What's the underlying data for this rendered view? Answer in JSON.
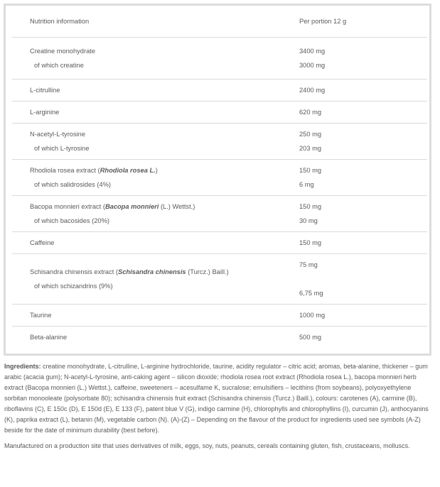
{
  "table": {
    "header": {
      "name": "Nutrition information",
      "value": "Per portion 12 g"
    },
    "rows": [
      {
        "name": "Creatine monohydrate",
        "value": "3400 mg",
        "sub": "of which creatine",
        "sub_value": "3000 mg"
      },
      {
        "name": "L-citrulline",
        "value": "2400 mg"
      },
      {
        "name": "L-arginine",
        "value": "620 mg"
      },
      {
        "name": "N-acetyl-L-tyrosine",
        "value": "250 mg",
        "sub": "of which L-tyrosine",
        "sub_value": "203 mg"
      },
      {
        "name": "Rhodiola rosea extract (",
        "latin": "Rhodiola rosea L.",
        "post": ")",
        "value": "150 mg",
        "sub": "of which salidrosides (4%)",
        "sub_value": "6 mg"
      },
      {
        "name": "Bacopa monnieri extract (",
        "latin": "Bacopa monnieri",
        "post": " (L.) Wettst.)",
        "value": "150 mg",
        "sub": "of which bacosides (20%)",
        "sub_value": "30 mg"
      },
      {
        "name": "Caffeine",
        "value": "150 mg"
      },
      {
        "name": "Schisandra chinensis extract (",
        "latin": "Schisandra chinensis",
        "post": " (Turcz.) Baill.)",
        "value": "75 mg",
        "sub": "of which schizandrins (9%)",
        "sub_value": "6,75 mg"
      },
      {
        "name": "Taurine",
        "value": "1000 mg"
      },
      {
        "name": "Beta-alanine",
        "value": "500 mg"
      }
    ]
  },
  "ingredients": {
    "label": "Ingredients:",
    "text": " creatine monohydrate, L-citrulline, L-arginine hydrochloride, taurine, acidity regulator – citric acid; aromas, beta-alanine, thickener – gum arabic (acacia gum); N-acetyl-L-tyrosine, anti-caking agent – silicon dioxide; rhodiola rosea root extract (Rhodiola rosea L.), bacopa monnieri herb extract (Bacopa monnieri (L.) Wettst.), caffeine, sweeteners – acesulfame K, sucralose; emulsifiers – lecithins (from soybeans), polyoxyethylene sorbitan monooleate (polysorbate 80); schisandra chinensis fruit extract (Schisandra chinensis (Turcz.) Baill.), colours: carotenes (A), carmine (B), riboflavins (C), E 150c (D), E 150d (E), E 133 (F), patent blue V (G), indigo carmine (H), chlorophylls and chlorophyllins (I), curcumin (J), anthocyanins (K), paprika extract (L), betanin (M), vegetable carbon (N). (A)-(Z) – Depending on the flavour of the product for ingredients used see symbols (A-Z) beside for the date of minimum durability (best before).",
    "allergen_note": "Manufactured on a production site that uses derivatives of milk, eggs, soy, nuts, peanuts, cereals containing gluten, fish, crustaceans, molluscs."
  }
}
